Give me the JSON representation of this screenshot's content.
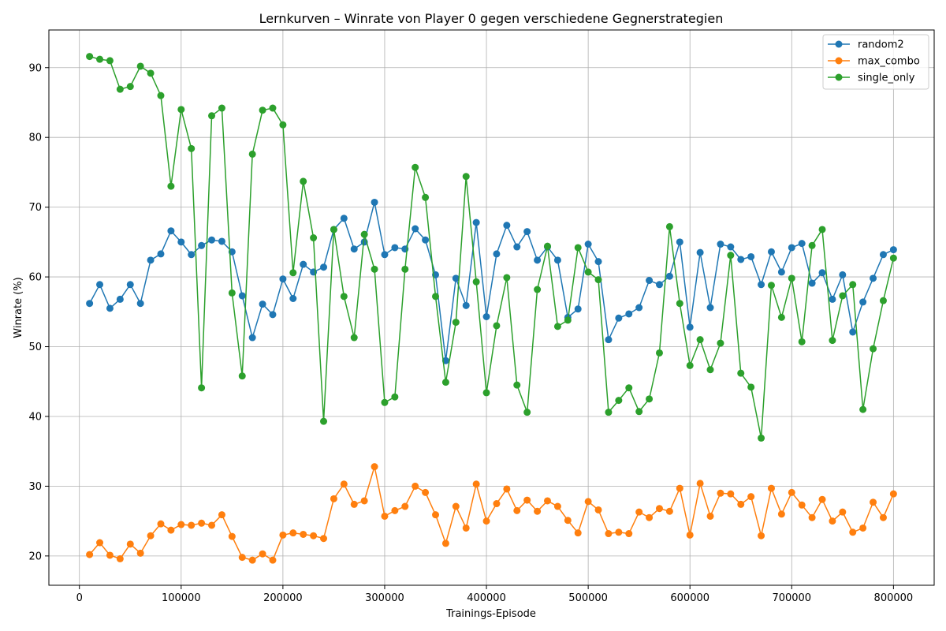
{
  "chart_data": {
    "type": "line",
    "title": "Lernkurven – Winrate von Player 0 gegen verschiedene Gegnerstrategien",
    "xlabel": "Trainings-Episode",
    "ylabel": "Winrate (%)",
    "xlim": [
      -30000,
      840000
    ],
    "ylim": [
      15.8,
      95.4
    ],
    "xticks": [
      0,
      100000,
      200000,
      300000,
      400000,
      500000,
      600000,
      700000,
      800000
    ],
    "yticks": [
      20,
      30,
      40,
      50,
      60,
      70,
      80,
      90
    ],
    "grid": true,
    "legend_position": "top-right",
    "x": [
      10000,
      20000,
      30000,
      40000,
      50000,
      60000,
      70000,
      80000,
      90000,
      100000,
      110000,
      120000,
      130000,
      140000,
      150000,
      160000,
      170000,
      180000,
      190000,
      200000,
      210000,
      220000,
      230000,
      240000,
      250000,
      260000,
      270000,
      280000,
      290000,
      300000,
      310000,
      320000,
      330000,
      340000,
      350000,
      360000,
      370000,
      380000,
      390000,
      400000,
      410000,
      420000,
      430000,
      440000,
      450000,
      460000,
      470000,
      480000,
      490000,
      500000,
      510000,
      520000,
      530000,
      540000,
      550000,
      560000,
      570000,
      580000,
      590000,
      600000,
      610000,
      620000,
      630000,
      640000,
      650000,
      660000,
      670000,
      680000,
      690000,
      700000,
      710000,
      720000,
      730000,
      740000,
      750000,
      760000,
      770000,
      780000,
      790000,
      800000
    ],
    "series": [
      {
        "name": "random2",
        "color": "#1f77b4",
        "values": [
          56.2,
          58.9,
          55.5,
          56.8,
          58.9,
          56.2,
          62.4,
          63.3,
          66.6,
          65.0,
          63.2,
          64.5,
          65.3,
          65.1,
          63.6,
          57.3,
          51.3,
          56.1,
          54.6,
          59.7,
          56.9,
          61.8,
          60.7,
          61.4,
          66.8,
          68.4,
          64.0,
          65.0,
          70.7,
          63.2,
          64.2,
          64.0,
          66.9,
          65.3,
          60.3,
          48.0,
          59.8,
          55.9,
          67.8,
          54.3,
          63.3,
          67.4,
          64.3,
          66.5,
          62.4,
          64.3,
          62.4,
          54.2,
          55.4,
          64.7,
          62.2,
          51.0,
          54.1,
          54.7,
          55.6,
          59.5,
          58.9,
          60.1,
          65.0,
          52.8,
          63.5,
          55.6,
          64.7,
          64.3,
          62.5,
          62.9,
          58.9,
          63.6,
          60.7,
          64.2,
          64.8,
          59.1,
          60.6,
          56.8,
          60.3,
          52.1,
          56.4,
          59.8,
          63.2,
          63.9
        ]
      },
      {
        "name": "max_combo",
        "color": "#ff7f0e",
        "values": [
          20.2,
          21.9,
          20.1,
          19.6,
          21.7,
          20.4,
          22.9,
          24.6,
          23.7,
          24.5,
          24.4,
          24.7,
          24.4,
          25.9,
          22.8,
          19.8,
          19.4,
          20.3,
          19.4,
          23.0,
          23.3,
          23.1,
          22.9,
          22.5,
          28.2,
          30.3,
          27.4,
          27.9,
          32.8,
          25.7,
          26.5,
          27.1,
          30.0,
          29.1,
          25.9,
          21.8,
          27.1,
          24.0,
          30.3,
          25.0,
          27.5,
          29.6,
          26.5,
          28.0,
          26.4,
          27.9,
          27.1,
          25.1,
          23.3,
          27.8,
          26.6,
          23.2,
          23.4,
          23.2,
          26.3,
          25.5,
          26.8,
          26.4,
          29.7,
          23.0,
          30.4,
          25.7,
          29.0,
          28.9,
          27.4,
          28.5,
          22.9,
          29.7,
          26.0,
          29.1,
          27.3,
          25.5,
          28.1,
          25.0,
          26.3,
          23.4,
          24.0,
          27.7,
          25.5,
          28.9
        ]
      },
      {
        "name": "single_only",
        "color": "#2ca02c",
        "values": [
          91.6,
          91.2,
          91.0,
          86.9,
          87.3,
          90.2,
          89.2,
          86.0,
          73.0,
          84.0,
          78.4,
          44.1,
          83.1,
          84.2,
          57.7,
          45.8,
          77.6,
          83.9,
          84.2,
          81.8,
          60.6,
          73.7,
          65.6,
          39.3,
          66.8,
          57.2,
          51.3,
          66.1,
          61.1,
          42.0,
          42.8,
          61.1,
          75.7,
          71.4,
          57.2,
          44.9,
          53.5,
          74.4,
          59.3,
          43.4,
          53.0,
          59.9,
          44.5,
          40.6,
          58.2,
          64.4,
          52.9,
          53.8,
          64.2,
          60.7,
          59.6,
          40.6,
          42.3,
          44.1,
          40.7,
          42.5,
          49.1,
          67.2,
          56.2,
          47.3,
          51.0,
          46.7,
          50.5,
          63.1,
          46.2,
          44.2,
          36.9,
          58.8,
          54.2,
          59.8,
          50.7,
          64.5,
          66.8,
          50.9,
          57.3,
          58.9,
          41.0,
          49.7,
          56.6,
          62.7
        ]
      }
    ]
  }
}
